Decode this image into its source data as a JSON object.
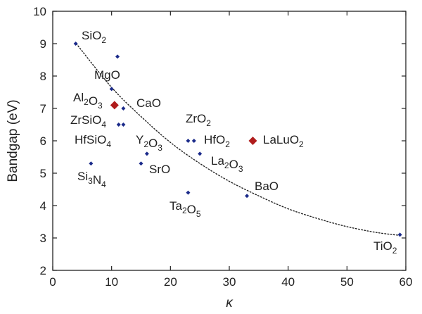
{
  "chart_data": {
    "type": "scatter",
    "title": "",
    "xlabel": "κ",
    "ylabel": "Bandgap (eV)",
    "xlim": [
      0,
      60
    ],
    "ylim": [
      2,
      10
    ],
    "xticks": [
      0,
      10,
      20,
      30,
      40,
      50,
      60
    ],
    "yticks": [
      2,
      3,
      4,
      5,
      6,
      7,
      8,
      9,
      10
    ],
    "grid": false,
    "marker_color": "#1a2a8a",
    "highlight_color": "#b01c1c",
    "trend_color": "#222222",
    "trend": {
      "style": "dotted",
      "x": [
        4,
        10,
        15,
        20,
        25,
        30,
        35,
        40,
        45,
        50,
        55,
        59
      ],
      "y": [
        9.0,
        7.65,
        6.75,
        5.95,
        5.3,
        4.75,
        4.3,
        3.9,
        3.6,
        3.35,
        3.17,
        3.08
      ]
    },
    "points": [
      {
        "label": "SiO",
        "sub": "2",
        "x": 3.9,
        "y": 9.0,
        "highlight": false
      },
      {
        "label": "",
        "sub": "",
        "x": 11.0,
        "y": 8.6,
        "highlight": false
      },
      {
        "label": "MgO",
        "sub": "",
        "x": 10.0,
        "y": 7.6,
        "highlight": false
      },
      {
        "label": "Al",
        "sub": "2",
        "label2": "O",
        "sub2": "3",
        "x": 10.5,
        "y": 7.1,
        "highlight": true
      },
      {
        "label": "CaO",
        "sub": "",
        "x": 12.0,
        "y": 7.0,
        "highlight": false
      },
      {
        "label": "ZrSiO",
        "sub": "4",
        "x": 11.2,
        "y": 6.5,
        "highlight": false
      },
      {
        "label": "HfSiO",
        "sub": "4",
        "x": 12.0,
        "y": 6.5,
        "highlight": false
      },
      {
        "label": "Si",
        "sub": "3",
        "label2": "N",
        "sub2": "4",
        "x": 6.5,
        "y": 5.3,
        "highlight": false
      },
      {
        "label": "Y",
        "sub": "2",
        "label2": "O",
        "sub2": "3",
        "x": 16.0,
        "y": 5.6,
        "highlight": false
      },
      {
        "label": "SrO",
        "sub": "",
        "x": 15.0,
        "y": 5.3,
        "highlight": false
      },
      {
        "label": "ZrO",
        "sub": "2",
        "x": 23.0,
        "y": 6.0,
        "highlight": false
      },
      {
        "label": "HfO",
        "sub": "2",
        "x": 24.0,
        "y": 6.0,
        "highlight": false
      },
      {
        "label": "La",
        "sub": "2",
        "label2": "O",
        "sub2": "3",
        "x": 25.0,
        "y": 5.6,
        "highlight": false
      },
      {
        "label": "LaLuO",
        "sub": "2",
        "x": 34.0,
        "y": 6.0,
        "highlight": true
      },
      {
        "label": "Ta",
        "sub": "2",
        "label2": "O",
        "sub2": "5",
        "x": 23.0,
        "y": 4.4,
        "highlight": false
      },
      {
        "label": "BaO",
        "sub": "",
        "x": 33.0,
        "y": 4.3,
        "highlight": false
      },
      {
        "label": "TiO",
        "sub": "2",
        "x": 59.0,
        "y": 3.1,
        "highlight": false
      }
    ]
  }
}
